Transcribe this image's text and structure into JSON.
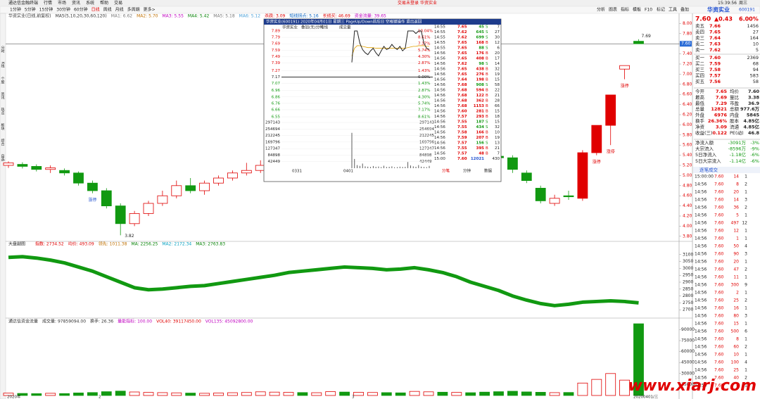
{
  "menu": {
    "left": [
      "通达信金融终端",
      "行情",
      "市场",
      "资讯",
      "系统",
      "帮助",
      "交易"
    ],
    "center": [
      "交易未登录",
      "华资实业"
    ],
    "right": [
      "15:39:56",
      "周三"
    ]
  },
  "toolbar": {
    "periods": [
      "1分钟",
      "5分钟",
      "15分钟",
      "30分钟",
      "60分钟",
      "日线",
      "周线",
      "月线",
      "多周期",
      "更多>"
    ],
    "right": [
      "分析",
      "图表",
      "指标",
      "模板",
      "F10",
      "标记",
      "工具",
      "叠加"
    ]
  },
  "side_tabs": [
    "分时",
    "K线",
    "个股",
    "资讯",
    "热点",
    "板块",
    "综合",
    "自选"
  ],
  "kline": {
    "header": [
      {
        "text": "华资实业(日线,前复权)",
        "color": "#333"
      },
      {
        "text": "MA5(5,10,20,30,60,120)",
        "color": "#333"
      },
      {
        "text": "MA1: 6.62",
        "color": "#777"
      },
      {
        "text": "MA2: 5.70",
        "color": "#c07000"
      },
      {
        "text": "MA3: 5.55",
        "color": "#c000c0"
      },
      {
        "text": "MA4: 5.42",
        "color": "#008000"
      },
      {
        "text": "MA5: 5.18",
        "color": "#777"
      },
      {
        "text": "MA6: 5.12",
        "color": "#4aa0d8"
      },
      {
        "text": "杀跌: 3.09",
        "color": "#e00000"
      },
      {
        "text": "短线拐点: 5.16",
        "color": "#0060c0"
      },
      {
        "text": "长线买: 46.69",
        "color": "#e00000"
      },
      {
        "text": "资金流量: 39.65",
        "color": "#c000c0"
      }
    ],
    "ylim": [
      3.7,
      8.2
    ],
    "yticks": [
      {
        "value": 3.8,
        "label": "3.80"
      },
      {
        "value": 4,
        "label": "4.00"
      },
      {
        "value": 4.2,
        "label": "4.20"
      },
      {
        "value": 4.4,
        "label": "4.40"
      },
      {
        "value": 4.6,
        "label": "4.60"
      },
      {
        "value": 4.8,
        "label": "4.80"
      },
      {
        "value": 5,
        "label": "5.00"
      },
      {
        "value": 5.2,
        "label": "5.20"
      },
      {
        "value": 5.4,
        "label": "5.40"
      },
      {
        "value": 5.6,
        "label": "5.60"
      },
      {
        "value": 5.8,
        "label": "5.80"
      },
      {
        "value": 6,
        "label": "6.00"
      },
      {
        "value": 6.2,
        "label": "6.20"
      },
      {
        "value": 6.4,
        "label": "6.40"
      },
      {
        "value": 6.6,
        "label": "6.60"
      },
      {
        "value": 6.8,
        "label": "6.80"
      },
      {
        "value": 7,
        "label": "7.00"
      },
      {
        "value": 7.2,
        "label": "7.20"
      },
      {
        "value": 7.4,
        "label": "7.40"
      },
      {
        "value": 7.6,
        "label": "7.60"
      },
      {
        "value": 7.8,
        "label": "7.80"
      },
      {
        "value": 8,
        "label": "8.00"
      }
    ],
    "candles": {
      "open": [
        5.2,
        5.22,
        5.18,
        5.12,
        5.1,
        5.05,
        4.85,
        4.7,
        4.4,
        4.05,
        4.25,
        4.45,
        4.6,
        4.8,
        4.7,
        4.85,
        4.95,
        5.05,
        5.1,
        5.2,
        5.25,
        5.3,
        5.28,
        5.35,
        5.4,
        5.38,
        5.45,
        5.5,
        5.42,
        5.4,
        5.48,
        5.52,
        5.45,
        5.5,
        5.42,
        5.38,
        5.35,
        5.05,
        4.75,
        4.45,
        4.6,
        4.55,
        5.45,
        5.99,
        7.1,
        7.65
      ],
      "close": [
        5.25,
        5.18,
        5.12,
        5.15,
        5.05,
        4.85,
        4.7,
        4.4,
        4.05,
        4.25,
        4.45,
        4.6,
        4.8,
        4.7,
        4.85,
        4.95,
        5.05,
        5.1,
        5.2,
        5.25,
        5.3,
        5.28,
        5.35,
        5.4,
        5.38,
        5.45,
        5.5,
        5.42,
        5.4,
        5.48,
        5.52,
        5.45,
        5.5,
        5.42,
        5.38,
        5.35,
        5.12,
        4.9,
        4.5,
        4.55,
        4.58,
        5.45,
        5.99,
        6.59,
        7.17,
        7.6
      ],
      "high": [
        5.28,
        5.26,
        5.22,
        5.2,
        5.14,
        5.08,
        4.9,
        4.75,
        4.45,
        4.3,
        4.5,
        4.7,
        4.9,
        4.95,
        4.9,
        5,
        5.1,
        5.25,
        5.3,
        5.32,
        5.36,
        5.38,
        5.4,
        5.45,
        5.46,
        5.5,
        5.56,
        5.55,
        5.48,
        5.52,
        5.58,
        5.56,
        5.55,
        5.54,
        5.46,
        5.42,
        5.4,
        5.1,
        4.8,
        4.62,
        4.7,
        5.5,
        5.99,
        6.59,
        7.17,
        7.69
      ],
      "low": [
        5.15,
        5.14,
        5.08,
        5.05,
        5,
        4.8,
        4.65,
        4.35,
        3.82,
        4,
        4.2,
        4.4,
        4.55,
        4.65,
        4.62,
        4.8,
        4.9,
        5,
        5.05,
        5.15,
        5.2,
        5.22,
        5.24,
        5.3,
        5.32,
        5.34,
        5.4,
        5.38,
        5.35,
        5.36,
        5.44,
        5.4,
        5.42,
        5.38,
        5.33,
        5.3,
        5.05,
        4.85,
        4.45,
        4.4,
        4.52,
        4.5,
        5.4,
        5.6,
        6.9,
        7.6
      ]
    },
    "candle_notes": [
      null,
      null,
      null,
      null,
      null,
      null,
      "涨停",
      null,
      null,
      null,
      null,
      null,
      null,
      null,
      null,
      null,
      null,
      null,
      null,
      null,
      null,
      null,
      null,
      null,
      null,
      null,
      null,
      null,
      null,
      null,
      null,
      null,
      null,
      null,
      null,
      null,
      null,
      null,
      null,
      null,
      null,
      null,
      "涨停",
      "涨停",
      "涨停",
      null
    ]
  },
  "index_panel": {
    "title": "大盘副图",
    "header": [
      {
        "text": "指数: 2734.52",
        "color": "#e00000"
      },
      {
        "text": "均价: 493.09",
        "color": "#e00000"
      },
      {
        "text": "领先: 1011.38",
        "color": "#c07000"
      },
      {
        "text": "MA: 2256.25",
        "color": "#008000"
      },
      {
        "text": "MA2: 2172.34",
        "color": "#00a0c0"
      },
      {
        "text": "MA3: 2763.83",
        "color": "#008000"
      }
    ],
    "ylim": [
      2650,
      3150
    ],
    "yticks": [
      2700,
      2750,
      2800,
      2850,
      2900,
      2950,
      3000,
      3050,
      3100
    ],
    "values": [
      3080,
      3085,
      3075,
      3060,
      3040,
      3010,
      2980,
      2940,
      2900,
      2860,
      2845,
      2850,
      2860,
      2870,
      2875,
      2890,
      2905,
      2920,
      2935,
      2950,
      2970,
      2980,
      2990,
      3000,
      3010,
      3005,
      3000,
      2990,
      2995,
      3005,
      2990,
      2970,
      2940,
      2900,
      2870,
      2840,
      2800,
      2770,
      2745,
      2730,
      2740,
      2755,
      2760,
      2765,
      2760,
      2750
    ]
  },
  "volume_panel": {
    "header": [
      {
        "text": "通达信资金流量",
        "color": "#333"
      },
      {
        "text": "成交量: 97859094.00",
        "color": "#333"
      },
      {
        "text": "换手: 26.36",
        "color": "#333"
      },
      {
        "text": "量能指标: 100.00",
        "color": "#c000c0"
      },
      {
        "text": "VOL40: 39117450.00",
        "color": "#e00000"
      },
      {
        "text": "VOL135: 45092800.00",
        "color": "#c000c0"
      }
    ],
    "ylim": [
      0,
      100000
    ],
    "yticks": [
      15000,
      30000,
      45000,
      60000,
      75000,
      90000
    ],
    "values": [
      3200,
      2800,
      2500,
      3000,
      2600,
      3500,
      4000,
      5200,
      6000,
      4800,
      4200,
      3900,
      3600,
      3300,
      3000,
      3400,
      3800,
      4100,
      5000,
      4600,
      4300,
      4000,
      3800,
      5200,
      4700,
      4400,
      4100,
      3900,
      3600,
      5600,
      5000,
      4500,
      4200,
      3800,
      4600,
      5200,
      5800,
      4900,
      4400,
      3900,
      4100,
      17000,
      22000,
      30000,
      21000,
      98000
    ],
    "x_labels": [
      "2020年",
      "2",
      "3",
      "20200401/三"
    ]
  },
  "quote": {
    "name": "华资实业",
    "code": "600191",
    "price": "7.60",
    "change": "▲0.43",
    "percent": "6.00%",
    "asks": [
      [
        "卖五",
        "7.66",
        "1456"
      ],
      [
        "卖四",
        "7.65",
        "27"
      ],
      [
        "卖三",
        "7.64",
        "164"
      ],
      [
        "卖二",
        "7.63",
        "10"
      ],
      [
        "卖一",
        "7.62",
        "5"
      ]
    ],
    "bids": [
      [
        "买一",
        "7.60",
        "2369"
      ],
      [
        "买二",
        "7.59",
        "68"
      ],
      [
        "买三",
        "7.58",
        "94"
      ],
      [
        "买四",
        "7.57",
        "583"
      ],
      [
        "买五",
        "7.56",
        "58"
      ]
    ],
    "stats": [
      [
        "今开",
        "7.65",
        "均价",
        "7.60"
      ],
      [
        "最高",
        "7.69",
        "量比",
        "3.38"
      ],
      [
        "最低",
        "7.29",
        "市盈",
        "36.9"
      ],
      [
        "总量",
        "12821",
        "总额",
        "977.6万"
      ],
      [
        "外盘",
        "6976",
        "内盘",
        "5845"
      ],
      [
        "换手",
        "26.36%",
        "股本",
        "4.85亿"
      ],
      [
        "净资",
        "3.09",
        "流通",
        "4.85亿"
      ],
      [
        "收益(三)",
        "0.122",
        "PE(动)",
        "46.8"
      ]
    ],
    "flows": [
      [
        "净流入额",
        "-3091万",
        "-3%"
      ],
      [
        "大宗流入",
        "-8596万",
        "-9%"
      ],
      [
        "5日净流入",
        "-1.18亿",
        "-6%"
      ],
      [
        "5日大宗流入",
        "-1.14亿",
        "-6%"
      ]
    ],
    "ticks_title": "逐笔成交",
    "ticks": [
      [
        "15:00:00",
        "7.60",
        "14",
        "1"
      ],
      [
        "14:56",
        "7.60",
        "8",
        "2"
      ],
      [
        "14:56",
        "7.60",
        "20",
        "1"
      ],
      [
        "14:56",
        "7.60",
        "14",
        "3"
      ],
      [
        "14:56",
        "7.60",
        "36",
        "2"
      ],
      [
        "14:56",
        "7.60",
        "5",
        "1"
      ],
      [
        "14:56",
        "7.60",
        "497",
        "12"
      ],
      [
        "14:56",
        "7.60",
        "12",
        "1"
      ],
      [
        "14:56",
        "7.60",
        "1",
        "1"
      ],
      [
        "14:56",
        "7.60",
        "50",
        "4"
      ],
      [
        "14:56",
        "7.60",
        "90",
        "3"
      ],
      [
        "14:56",
        "7.60",
        "20",
        "1"
      ],
      [
        "14:56",
        "7.60",
        "47",
        "2"
      ],
      [
        "14:56",
        "7.60",
        "11",
        "1"
      ],
      [
        "14:56",
        "7.60",
        "300",
        "9"
      ],
      [
        "14:56",
        "7.60",
        "2",
        "1"
      ],
      [
        "14:56",
        "7.60",
        "25",
        "2"
      ],
      [
        "14:56",
        "7.60",
        "16",
        "1"
      ],
      [
        "14:56",
        "7.60",
        "80",
        "3"
      ],
      [
        "14:56",
        "7.60",
        "15",
        "1"
      ],
      [
        "14:56",
        "7.60",
        "500",
        "6"
      ],
      [
        "14:56",
        "7.60",
        "8",
        "1"
      ],
      [
        "14:56",
        "7.60",
        "60",
        "2"
      ],
      [
        "14:56",
        "7.60",
        "10",
        "1"
      ],
      [
        "14:56",
        "7.60",
        "100",
        "4"
      ],
      [
        "14:56",
        "7.60",
        "25",
        "1"
      ],
      [
        "14:56",
        "7.60",
        "40",
        "2"
      ],
      [
        "14:56",
        "7.60",
        "8",
        "1"
      ]
    ]
  },
  "popup": {
    "title": "华资实业(600191) 2020年04月01日 星期三 PageUp/Down前后日 空格键操作 退出返回",
    "tabs": [
      "华资实业",
      "叠加(无)分时",
      "均线",
      "成交量"
    ],
    "ylim": [
      6.55,
      7.89
    ],
    "yticks": [
      7.89,
      7.79,
      7.69,
      7.59,
      7.49,
      7.39,
      7.27,
      7.17,
      7.07,
      6.96,
      6.86,
      6.76,
      6.66,
      6.55
    ],
    "pct_labels": [
      "10.04%",
      "8.61%",
      "7.17%",
      "5.74%",
      "4.30%",
      "2.87%",
      "1.43%",
      "0.00%",
      "1.43%",
      "2.87%",
      "4.30%",
      "5.74%",
      "7.17%",
      "8.61%"
    ],
    "prices": [
      7.4,
      7.89,
      7.89,
      7.7,
      7.6,
      7.55,
      7.52,
      7.58,
      7.62,
      7.55,
      7.5,
      7.58,
      7.65,
      7.6,
      7.62,
      7.68,
      7.63,
      7.6,
      7.65,
      7.58,
      7.62,
      7.89,
      7.89,
      7.89,
      7.85,
      7.89,
      7.89,
      7.7,
      7.62,
      7.6
    ],
    "avg": [
      7.5,
      7.62,
      7.66,
      7.66,
      7.65,
      7.64,
      7.63,
      7.63,
      7.63,
      7.62,
      7.62,
      7.62,
      7.62,
      7.62,
      7.62,
      7.62,
      7.62,
      7.62,
      7.62,
      7.62,
      7.62,
      7.63,
      7.64,
      7.65,
      7.65,
      7.66,
      7.66,
      7.66,
      7.65,
      7.65
    ],
    "vlim": [
      0,
      297143
    ],
    "vticks": [
      297143,
      254694,
      212245,
      169796,
      127347,
      84898,
      42449
    ],
    "volumes": [
      230000,
      60000,
      20000,
      15000,
      30000,
      12000,
      10000,
      8000,
      14000,
      9000,
      11000,
      7000,
      16000,
      8000,
      9000,
      12000,
      6000,
      7000,
      10000,
      8000,
      9000,
      40000,
      18000,
      12000,
      9000,
      20000,
      10000,
      8000,
      7000,
      15000
    ],
    "time_labels": [
      "0331",
      "0401"
    ],
    "rows": [
      [
        "14:55",
        "7.65",
        "45",
        "S",
        "7"
      ],
      [
        "14:55",
        "7.62",
        "645",
        "S",
        "27"
      ],
      [
        "14:55",
        "7.62",
        "699",
        "S",
        "30"
      ],
      [
        "14:55",
        "7.65",
        "168",
        "B",
        "12"
      ],
      [
        "14:55",
        "7.65",
        "88",
        "S",
        "6"
      ],
      [
        "14:56",
        "7.65",
        "176",
        "B",
        "20"
      ],
      [
        "14:56",
        "7.65",
        "408",
        "B",
        "17"
      ],
      [
        "14:56",
        "7.62",
        "98",
        "S",
        "14"
      ],
      [
        "14:56",
        "7.65",
        "438",
        "B",
        "32"
      ],
      [
        "14:56",
        "7.65",
        "276",
        "B",
        "19"
      ],
      [
        "14:56",
        "7.64",
        "198",
        "B",
        "15"
      ],
      [
        "14:56",
        "7.68",
        "908",
        "S",
        "58"
      ],
      [
        "14:56",
        "7.68",
        "594",
        "B",
        "22"
      ],
      [
        "14:56",
        "7.68",
        "122",
        "B",
        "21"
      ],
      [
        "14:56",
        "7.68",
        "362",
        "B",
        "28"
      ],
      [
        "14:56",
        "7.68",
        "1153",
        "B",
        "66"
      ],
      [
        "14:56",
        "7.60",
        "281",
        "B",
        "15"
      ],
      [
        "14:56",
        "7.57",
        "293",
        "B",
        "18"
      ],
      [
        "14:56",
        "7.55",
        "187",
        "S",
        "15"
      ],
      [
        "14:56",
        "7.55",
        "434",
        "S",
        "32"
      ],
      [
        "14:56",
        "7.58",
        "166",
        "B",
        "10"
      ],
      [
        "14:56",
        "7.59",
        "207",
        "B",
        "19"
      ],
      [
        "14:56",
        "7.57",
        "156",
        "S",
        "13"
      ],
      [
        "14:56",
        "7.55",
        "395",
        "B",
        "21"
      ],
      [
        "14:56",
        "7.57",
        "48",
        "B",
        "7"
      ],
      [
        "15:00",
        "7.60",
        "12021",
        "430"
      ]
    ],
    "buttons": [
      "分笔",
      "分钟",
      "数据"
    ]
  },
  "watermark": "www.xiarj.com"
}
